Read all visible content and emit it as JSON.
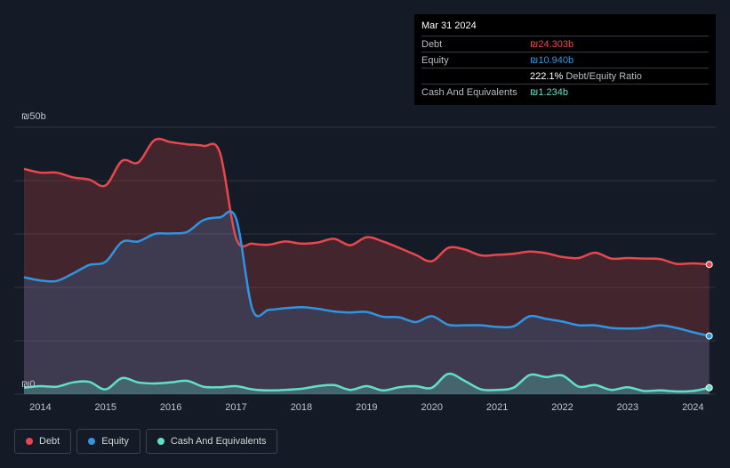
{
  "tooltip": {
    "date": "Mar 31 2024",
    "debt_label": "Debt",
    "debt_value": "₪24.303b",
    "equity_label": "Equity",
    "equity_value": "₪10.940b",
    "ratio_value": "222.1%",
    "ratio_label": "Debt/Equity Ratio",
    "cash_label": "Cash And Equivalents",
    "cash_value": "₪1.234b"
  },
  "legend": {
    "debt": "Debt",
    "equity": "Equity",
    "cash": "Cash And Equivalents"
  },
  "colors": {
    "debt": "#e8474d",
    "equity": "#2f95e3",
    "cash": "#5fe0c8",
    "background": "#151b26"
  },
  "chart_data": {
    "type": "area",
    "title": "",
    "xlabel": "",
    "ylabel": "",
    "y_unit": "₪ billions",
    "ylim": [
      0,
      50
    ],
    "y_tick_labels": [
      "₪50b",
      "₪0"
    ],
    "x_tick_labels": [
      "2014",
      "2015",
      "2016",
      "2017",
      "2018",
      "2019",
      "2020",
      "2021",
      "2022",
      "2023",
      "2024"
    ],
    "x_ticks": [
      2014,
      2015,
      2016,
      2017,
      2018,
      2019,
      2020,
      2021,
      2022,
      2023,
      2024
    ],
    "xlim": [
      2013.6,
      2024.35
    ],
    "x": [
      2013.75,
      2014.0,
      2014.25,
      2014.5,
      2014.75,
      2015.0,
      2015.25,
      2015.5,
      2015.75,
      2016.0,
      2016.25,
      2016.5,
      2016.75,
      2017.0,
      2017.25,
      2017.5,
      2017.75,
      2018.0,
      2018.25,
      2018.5,
      2018.75,
      2019.0,
      2019.25,
      2019.5,
      2019.75,
      2020.0,
      2020.25,
      2020.5,
      2020.75,
      2021.0,
      2021.25,
      2021.5,
      2021.75,
      2022.0,
      2022.25,
      2022.5,
      2022.75,
      2023.0,
      2023.25,
      2023.5,
      2023.75,
      2024.0,
      2024.25
    ],
    "series": [
      {
        "name": "Debt",
        "values": [
          42.2,
          41.5,
          41.5,
          40.6,
          40.2,
          39.1,
          43.7,
          43.4,
          47.6,
          47.2,
          46.8,
          46.5,
          45.3,
          29.2,
          28.2,
          28.0,
          28.6,
          28.2,
          28.4,
          29.1,
          27.9,
          29.4,
          28.6,
          27.4,
          26.1,
          24.9,
          27.4,
          27.1,
          26.0,
          26.1,
          26.3,
          26.7,
          26.4,
          25.7,
          25.5,
          26.5,
          25.4,
          25.5,
          25.4,
          25.3,
          24.4,
          24.5,
          24.3
        ]
      },
      {
        "name": "Equity",
        "values": [
          21.9,
          21.3,
          21.2,
          22.6,
          24.2,
          24.8,
          28.5,
          28.6,
          30.0,
          30.1,
          30.4,
          32.6,
          33.1,
          32.9,
          15.9,
          15.8,
          16.1,
          16.3,
          16.0,
          15.5,
          15.3,
          15.4,
          14.5,
          14.4,
          13.5,
          14.6,
          13.0,
          12.9,
          12.9,
          12.6,
          12.7,
          14.6,
          14.1,
          13.6,
          12.9,
          12.9,
          12.4,
          12.3,
          12.4,
          12.9,
          12.4,
          11.6,
          10.9
        ]
      },
      {
        "name": "Cash And Equivalents",
        "values": [
          1.2,
          1.5,
          1.4,
          2.2,
          2.3,
          0.9,
          3.0,
          2.2,
          2.0,
          2.2,
          2.5,
          1.4,
          1.3,
          1.5,
          0.9,
          0.7,
          0.8,
          1.0,
          1.5,
          1.7,
          0.8,
          1.5,
          0.7,
          1.3,
          1.5,
          1.2,
          3.8,
          2.5,
          0.9,
          0.8,
          1.2,
          3.6,
          3.2,
          3.5,
          1.4,
          1.7,
          0.8,
          1.3,
          0.6,
          0.7,
          0.5,
          0.6,
          1.2
        ]
      }
    ]
  }
}
